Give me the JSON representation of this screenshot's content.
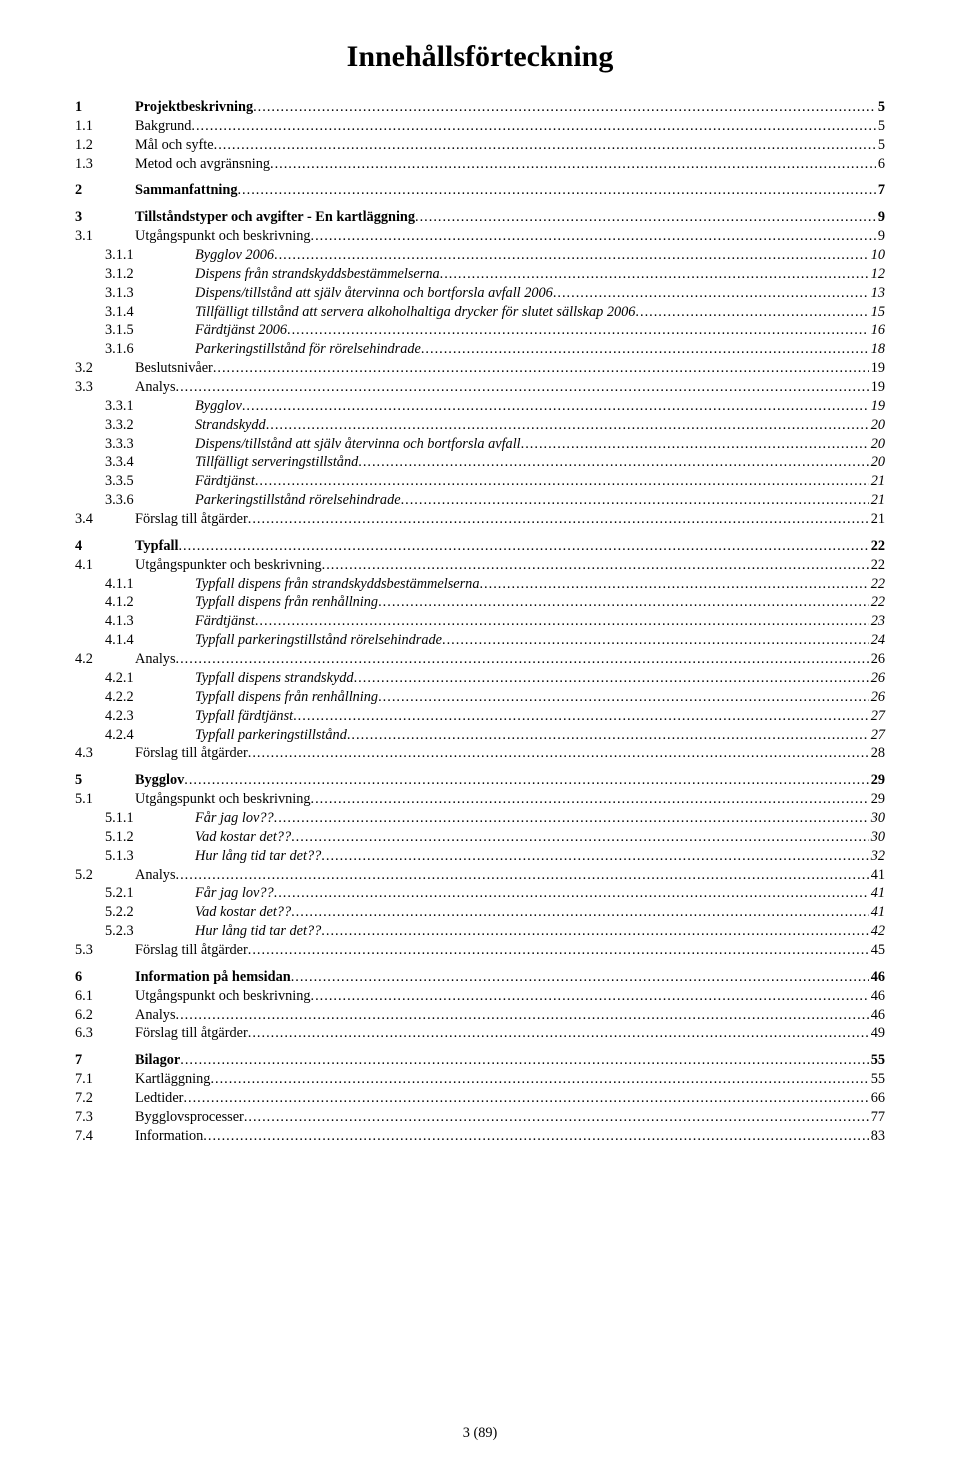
{
  "title": "Innehållsförteckning",
  "footer": "3 (89)",
  "leaderChar": ".",
  "entries": [
    {
      "level": 1,
      "num": "1",
      "text": "Projektbeskrivning",
      "page": "5",
      "gapBefore": false
    },
    {
      "level": 2,
      "num": "1.1",
      "text": "Bakgrund",
      "page": "5"
    },
    {
      "level": 2,
      "num": "1.2",
      "text": "Mål och syfte",
      "page": "5"
    },
    {
      "level": 2,
      "num": "1.3",
      "text": "Metod och avgränsning",
      "page": "6"
    },
    {
      "level": 1,
      "num": "2",
      "text": "Sammanfattning",
      "page": "7",
      "gapBefore": true
    },
    {
      "level": 1,
      "num": "3",
      "text": "Tillståndstyper och avgifter - En kartläggning",
      "page": "9",
      "gapBefore": true
    },
    {
      "level": 2,
      "num": "3.1",
      "text": "Utgångspunkt och beskrivning",
      "page": "9"
    },
    {
      "level": 3,
      "num": "3.1.1",
      "text": "Bygglov 2006",
      "page": "10"
    },
    {
      "level": 3,
      "num": "3.1.2",
      "text": "Dispens från strandskyddsbestämmelserna",
      "page": "12"
    },
    {
      "level": 3,
      "num": "3.1.3",
      "text": "Dispens/tillstånd att själv återvinna och bortforsla avfall 2006",
      "page": "13"
    },
    {
      "level": 3,
      "num": "3.1.4",
      "text": "Tillfälligt tillstånd att servera alkoholhaltiga drycker för slutet sällskap 2006",
      "page": "15"
    },
    {
      "level": 3,
      "num": "3.1.5",
      "text": "Färdtjänst 2006",
      "page": "16"
    },
    {
      "level": 3,
      "num": "3.1.6",
      "text": "Parkeringstillstånd för rörelsehindrade",
      "page": "18"
    },
    {
      "level": 2,
      "num": "3.2",
      "text": "Beslutsnivåer",
      "page": "19"
    },
    {
      "level": 2,
      "num": "3.3",
      "text": "Analys",
      "page": "19"
    },
    {
      "level": 3,
      "num": "3.3.1",
      "text": "Bygglov",
      "page": "19"
    },
    {
      "level": 3,
      "num": "3.3.2",
      "text": "Strandskydd",
      "page": "20"
    },
    {
      "level": 3,
      "num": "3.3.3",
      "text": "Dispens/tillstånd att själv återvinna och bortforsla avfall",
      "page": "20"
    },
    {
      "level": 3,
      "num": "3.3.4",
      "text": "Tillfälligt serveringstillstånd",
      "page": "20"
    },
    {
      "level": 3,
      "num": "3.3.5",
      "text": "Färdtjänst",
      "page": "21"
    },
    {
      "level": 3,
      "num": "3.3.6",
      "text": "Parkeringstillstånd rörelsehindrade",
      "page": "21"
    },
    {
      "level": 2,
      "num": "3.4",
      "text": "Förslag till åtgärder",
      "page": "21"
    },
    {
      "level": 1,
      "num": "4",
      "text": "Typfall",
      "page": "22",
      "gapBefore": true
    },
    {
      "level": 2,
      "num": "4.1",
      "text": "Utgångspunkter och beskrivning",
      "page": "22"
    },
    {
      "level": 3,
      "num": "4.1.1",
      "text": "Typfall dispens från strandskyddsbestämmelserna",
      "page": "22"
    },
    {
      "level": 3,
      "num": "4.1.2",
      "text": "Typfall dispens från renhållning",
      "page": "22"
    },
    {
      "level": 3,
      "num": "4.1.3",
      "text": "Färdtjänst",
      "page": "23"
    },
    {
      "level": 3,
      "num": "4.1.4",
      "text": "Typfall parkeringstillstånd rörelsehindrade",
      "page": "24"
    },
    {
      "level": 2,
      "num": "4.2",
      "text": "Analys",
      "page": "26"
    },
    {
      "level": 3,
      "num": "4.2.1",
      "text": "Typfall dispens strandskydd",
      "page": "26"
    },
    {
      "level": 3,
      "num": "4.2.2",
      "text": "Typfall dispens från renhållning",
      "page": "26"
    },
    {
      "level": 3,
      "num": "4.2.3",
      "text": "Typfall färdtjänst",
      "page": "27"
    },
    {
      "level": 3,
      "num": "4.2.4",
      "text": "Typfall parkeringstillstånd",
      "page": "27"
    },
    {
      "level": 2,
      "num": "4.3",
      "text": "Förslag till åtgärder",
      "page": "28"
    },
    {
      "level": 1,
      "num": "5",
      "text": "Bygglov",
      "page": "29",
      "gapBefore": true
    },
    {
      "level": 2,
      "num": "5.1",
      "text": "Utgångspunkt och beskrivning",
      "page": "29"
    },
    {
      "level": 3,
      "num": "5.1.1",
      "text": "Får jag lov??",
      "page": "30"
    },
    {
      "level": 3,
      "num": "5.1.2",
      "text": "Vad kostar det??",
      "page": "30"
    },
    {
      "level": 3,
      "num": "5.1.3",
      "text": "Hur lång tid tar det??",
      "page": "32"
    },
    {
      "level": 2,
      "num": "5.2",
      "text": "Analys",
      "page": "41"
    },
    {
      "level": 3,
      "num": "5.2.1",
      "text": "Får jag lov??",
      "page": "41"
    },
    {
      "level": 3,
      "num": "5.2.2",
      "text": "Vad kostar det??",
      "page": "41"
    },
    {
      "level": 3,
      "num": "5.2.3",
      "text": "Hur lång tid tar det??",
      "page": "42"
    },
    {
      "level": 2,
      "num": "5.3",
      "text": "Förslag till åtgärder",
      "page": "45"
    },
    {
      "level": 1,
      "num": "6",
      "text": "Information på hemsidan",
      "page": "46",
      "gapBefore": true
    },
    {
      "level": 2,
      "num": "6.1",
      "text": "Utgångspunkt och beskrivning",
      "page": "46"
    },
    {
      "level": 2,
      "num": "6.2",
      "text": "Analys",
      "page": "46"
    },
    {
      "level": 2,
      "num": "6.3",
      "text": "Förslag till åtgärder",
      "page": "49"
    },
    {
      "level": 1,
      "num": "7",
      "text": "Bilagor",
      "page": "55",
      "gapBefore": true
    },
    {
      "level": 2,
      "num": "7.1",
      "text": "Kartläggning",
      "page": "55"
    },
    {
      "level": 2,
      "num": "7.2",
      "text": "Ledtider",
      "page": "66"
    },
    {
      "level": 2,
      "num": "7.3",
      "text": "Bygglovsprocesser",
      "page": "77"
    },
    {
      "level": 2,
      "num": "7.4",
      "text": "Information",
      "page": "83"
    }
  ]
}
